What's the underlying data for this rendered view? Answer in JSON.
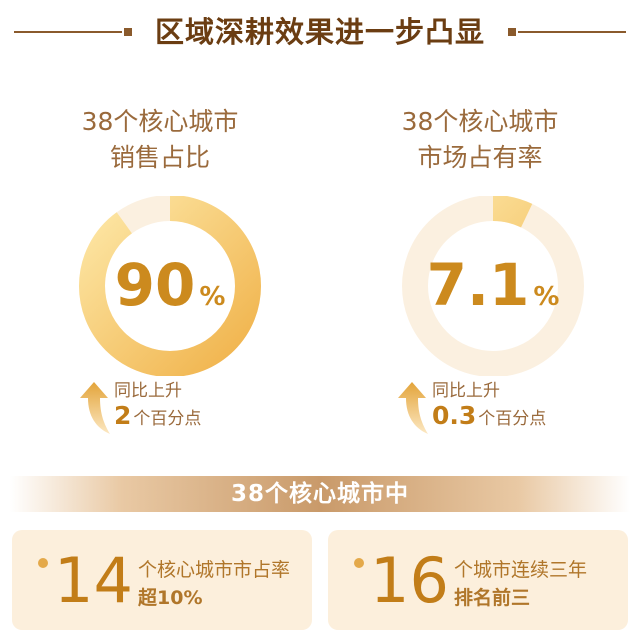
{
  "header": {
    "title": "区域深耕效果进一步凸显"
  },
  "metrics": [
    {
      "label_line1": "38个核心城市",
      "label_line2": "销售占比",
      "value": "90",
      "unit": "%",
      "fraction": 0.9,
      "delta_label": "同比上升",
      "delta_value": "2",
      "delta_unit": "个百分点"
    },
    {
      "label_line1": "38个核心城市",
      "label_line2": "市场占有率",
      "value": "7.1",
      "unit": "%",
      "fraction": 0.071,
      "delta_label": "同比上升",
      "delta_value": "0.3",
      "delta_unit": "个百分点"
    }
  ],
  "section": {
    "title": "38个核心城市中"
  },
  "cards": [
    {
      "number": "14",
      "line1": "个核心城市市占率",
      "line2": "超10%"
    },
    {
      "number": "16",
      "line1": "个城市连续三年",
      "line2": "排名前三"
    }
  ],
  "colors": {
    "accent": "#cc8a1e",
    "ring_track": "#fbf0e0",
    "ring_fill_start": "#f0b24a",
    "ring_fill_end": "#fde7a6",
    "title": "#6b3d12",
    "card_bg": "#fcefdc"
  },
  "icons": {
    "delta_arrow": "arrow-up-curve-icon"
  }
}
